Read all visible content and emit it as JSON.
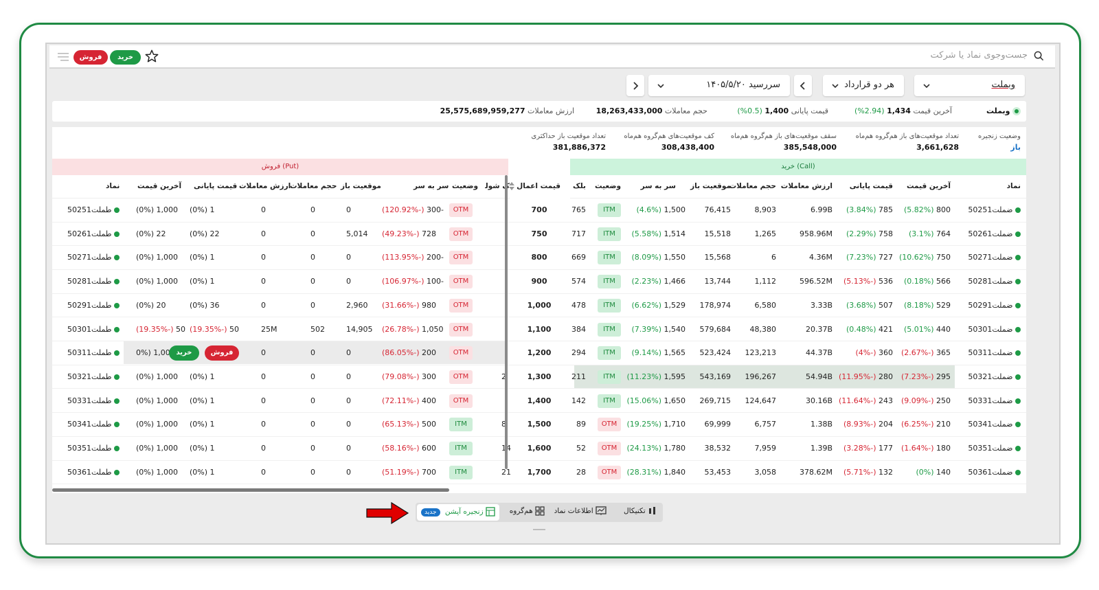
{
  "topbar": {
    "search_placeholder": "جست‌وجوی نماد یا شرکت",
    "buy_label": "خرید",
    "sell_label": "فروش"
  },
  "filters": {
    "symbol": "وبملت",
    "contract_type": "هر دو قرارداد",
    "expiry": "سررسید ۱۴۰۵/۵/۲۰"
  },
  "info1": {
    "symbol": "وبملت",
    "last_price_label": "آخرین قیمت",
    "last_price_value": "1,434",
    "last_price_change": "(2.94%)",
    "close_price_label": "قیمت پایانی",
    "close_price_value": "1,400",
    "close_price_change": "(0.5%)",
    "volume_label": "حجم معاملات",
    "volume_value": "18,263,433,000",
    "value_label": "ارزش معاملات",
    "value_value": "25,575,689,959,277"
  },
  "info2": [
    {
      "label": "وضعیت زنجیره",
      "value": "باز"
    },
    {
      "label": "تعداد موقعیت‌های باز هم‌گروه هم‌ماه",
      "value": "3,661,628"
    },
    {
      "label": "سقف موقعیت‌های باز هم‌گروه هم‌ماه",
      "value": "385,548,000"
    },
    {
      "label": "کف موقعیت‌های هم‌گروه هم‌ماه",
      "value": "308,438,400"
    },
    {
      "label": "تعداد موقعیت باز حداکثری",
      "value": "381,886,372"
    }
  ],
  "bands": {
    "call": "خرید (Call)",
    "put": "فروش (Put)"
  },
  "call_headers": {
    "symbol": "نماد",
    "last": "آخرین قیمت",
    "close": "قیمت پایانی",
    "value": "ارزش معاملات",
    "volume": "حجم معاملات",
    "oi": "موقعیت باز",
    "breakeven": "سر به سر",
    "status": "وضعیت",
    "block": "بلک"
  },
  "strike_header": "قیمت اعمال",
  "put_headers": {
    "bs": "ک شولز",
    "status": "وضعیت",
    "breakeven": "سر به سر",
    "oi": "موقعیت باز",
    "volume": "حجم معاملات",
    "value": "ارزش معاملات",
    "close": "قیمت پایانی",
    "last": "آخرین قیمت",
    "symbol": "نماد"
  },
  "rows": [
    {
      "strike": "700",
      "call": {
        "symbol": "ضملت50251",
        "last": "800",
        "last_chg": "(5.82%)",
        "close": "785",
        "close_chg": "(3.84%)",
        "value": "6.99B",
        "volume": "8,903",
        "oi": "76,415",
        "be": "1,500",
        "be_chg": "(4.6%)",
        "status": "ITM",
        "block": "765"
      },
      "put": {
        "bs": "",
        "status": "OTM",
        "be": "-300",
        "be_chg": "(-120.92%)",
        "oi": "0",
        "volume": "0",
        "value": "0",
        "close": "1",
        "close_chg": "(0%)",
        "last": "1,000",
        "last_chg": "(0%)",
        "symbol": "طملت50251"
      }
    },
    {
      "strike": "750",
      "call": {
        "symbol": "ضملت50261",
        "last": "764",
        "last_chg": "(3.1%)",
        "close": "758",
        "close_chg": "(2.29%)",
        "value": "958.96M",
        "volume": "1,265",
        "oi": "15,518",
        "be": "1,514",
        "be_chg": "(5.58%)",
        "status": "ITM",
        "block": "717"
      },
      "put": {
        "bs": "",
        "status": "OTM",
        "be": "728",
        "be_chg": "(-49.23%)",
        "oi": "5,014",
        "volume": "0",
        "value": "0",
        "close": "22",
        "close_chg": "(0%)",
        "last": "22",
        "last_chg": "(0%)",
        "symbol": "طملت50261"
      }
    },
    {
      "strike": "800",
      "call": {
        "symbol": "ضملت50271",
        "last": "750",
        "last_chg": "(10.62%)",
        "close": "727",
        "close_chg": "(7.23%)",
        "value": "4.36M",
        "volume": "6",
        "oi": "15,568",
        "be": "1,550",
        "be_chg": "(8.09%)",
        "status": "ITM",
        "block": "669"
      },
      "put": {
        "bs": "",
        "status": "OTM",
        "be": "-200",
        "be_chg": "(-113.95%)",
        "oi": "0",
        "volume": "0",
        "value": "0",
        "close": "1",
        "close_chg": "(0%)",
        "last": "1,000",
        "last_chg": "(0%)",
        "symbol": "طملت50271"
      }
    },
    {
      "strike": "900",
      "call": {
        "symbol": "ضملت50281",
        "last": "566",
        "last_chg": "(0.18%)",
        "close": "536",
        "close_chg": "(-5.13%)",
        "value": "596.52M",
        "volume": "1,112",
        "oi": "13,744",
        "be": "1,466",
        "be_chg": "(2.23%)",
        "status": "ITM",
        "block": "574"
      },
      "put": {
        "bs": "",
        "status": "OTM",
        "be": "-100",
        "be_chg": "(-106.97%)",
        "oi": "0",
        "volume": "0",
        "value": "0",
        "close": "1",
        "close_chg": "(0%)",
        "last": "1,000",
        "last_chg": "(0%)",
        "symbol": "طملت50281"
      }
    },
    {
      "strike": "1,000",
      "call": {
        "symbol": "ضملت50291",
        "last": "529",
        "last_chg": "(8.18%)",
        "close": "507",
        "close_chg": "(3.68%)",
        "value": "3.33B",
        "volume": "6,580",
        "oi": "178,974",
        "be": "1,529",
        "be_chg": "(6.62%)",
        "status": "ITM",
        "block": "478"
      },
      "put": {
        "bs": "",
        "status": "OTM",
        "be": "980",
        "be_chg": "(-31.66%)",
        "oi": "2,960",
        "volume": "0",
        "value": "0",
        "close": "36",
        "close_chg": "(0%)",
        "last": "20",
        "last_chg": "(0%)",
        "symbol": "طملت50291"
      }
    },
    {
      "strike": "1,100",
      "call": {
        "symbol": "ضملت50301",
        "last": "440",
        "last_chg": "(5.01%)",
        "close": "421",
        "close_chg": "(0.48%)",
        "value": "20.37B",
        "volume": "48,380",
        "oi": "579,684",
        "be": "1,540",
        "be_chg": "(7.39%)",
        "status": "ITM",
        "block": "384"
      },
      "put": {
        "bs": "",
        "status": "OTM",
        "be": "1,050",
        "be_chg": "(-26.78%)",
        "oi": "14,905",
        "volume": "502",
        "value": "25M",
        "close": "50",
        "close_chg": "(-19.35%)",
        "last": "50",
        "last_chg": "(-19.35%)",
        "symbol": "طملت50301"
      }
    },
    {
      "strike": "1,200",
      "call": {
        "symbol": "ضملت50311",
        "last": "365",
        "last_chg": "(-2.67%)",
        "close": "360",
        "close_chg": "(-4%)",
        "value": "44.37B",
        "volume": "123,213",
        "oi": "523,424",
        "be": "1,565",
        "be_chg": "(9.14%)",
        "status": "ITM",
        "block": "294"
      },
      "put": {
        "bs": "",
        "status": "OTM",
        "be": "200",
        "be_chg": "(-86.05%)",
        "oi": "0",
        "volume": "0",
        "value": "0",
        "close": "",
        "close_chg": "",
        "last": "1,000",
        "last_chg": "(0%",
        "symbol": "طملت50311"
      }
    },
    {
      "strike": "1,300",
      "call": {
        "symbol": "ضملت50321",
        "last": "295",
        "last_chg": "(-7.23%)",
        "close": "280",
        "close_chg": "(-11.95%)",
        "value": "54.94B",
        "volume": "196,267",
        "oi": "543,169",
        "be": "1,595",
        "be_chg": "(11.23%)",
        "status": "ITM",
        "block": "211"
      },
      "put": {
        "bs": "2",
        "status": "OTM",
        "be": "300",
        "be_chg": "(-79.08%)",
        "oi": "0",
        "volume": "0",
        "value": "0",
        "close": "1",
        "close_chg": "(0%)",
        "last": "1,000",
        "last_chg": "(0%)",
        "symbol": "طملت50321"
      }
    },
    {
      "strike": "1,400",
      "call": {
        "symbol": "ضملت50331",
        "last": "250",
        "last_chg": "(-9.09%)",
        "close": "243",
        "close_chg": "(-11.64%)",
        "value": "30.16B",
        "volume": "124,647",
        "oi": "269,715",
        "be": "1,650",
        "be_chg": "(15.06%)",
        "status": "ITM",
        "block": "142"
      },
      "put": {
        "bs": "",
        "status": "OTM",
        "be": "400",
        "be_chg": "(-72.11%)",
        "oi": "0",
        "volume": "0",
        "value": "0",
        "close": "1",
        "close_chg": "(0%)",
        "last": "1,000",
        "last_chg": "(0%)",
        "symbol": "طملت50331"
      }
    },
    {
      "strike": "1,500",
      "call": {
        "symbol": "ضملت50341",
        "last": "210",
        "last_chg": "(-6.25%)",
        "close": "204",
        "close_chg": "(-8.93%)",
        "value": "1.38B",
        "volume": "6,757",
        "oi": "69,999",
        "be": "1,710",
        "be_chg": "(19.25%)",
        "status": "OTM",
        "block": "89"
      },
      "put": {
        "bs": "8",
        "status": "ITM",
        "be": "500",
        "be_chg": "(-65.13%)",
        "oi": "0",
        "volume": "0",
        "value": "0",
        "close": "1",
        "close_chg": "(0%)",
        "last": "1,000",
        "last_chg": "(0%)",
        "symbol": "طملت50341"
      }
    },
    {
      "strike": "1,600",
      "call": {
        "symbol": "ضملت50351",
        "last": "180",
        "last_chg": "(-1.64%)",
        "close": "177",
        "close_chg": "(-3.28%)",
        "value": "1.39B",
        "volume": "7,959",
        "oi": "38,532",
        "be": "1,780",
        "be_chg": "(24.13%)",
        "status": "OTM",
        "block": "52"
      },
      "put": {
        "bs": "14",
        "status": "ITM",
        "be": "600",
        "be_chg": "(-58.16%)",
        "oi": "0",
        "volume": "0",
        "value": "0",
        "close": "1",
        "close_chg": "(0%)",
        "last": "1,000",
        "last_chg": "(0%)",
        "symbol": "طملت50351"
      }
    },
    {
      "strike": "1,700",
      "call": {
        "symbol": "ضملت50361",
        "last": "140",
        "last_chg": "(0%)",
        "close": "132",
        "close_chg": "(-5.71%)",
        "value": "378.62M",
        "volume": "3,058",
        "oi": "53,453",
        "be": "1,840",
        "be_chg": "(28.31%)",
        "status": "OTM",
        "block": "28"
      },
      "put": {
        "bs": "21",
        "status": "ITM",
        "be": "700",
        "be_chg": "(-51.19%)",
        "oi": "0",
        "volume": "0",
        "value": "0",
        "close": "1",
        "close_chg": "(0%)",
        "last": "1,000",
        "last_chg": "(0%)",
        "symbol": "طملت50361"
      }
    }
  ],
  "row_actions": {
    "buy": "خرید",
    "sell": "فروش"
  },
  "bottom_tabs": {
    "technical": "تکنیکال",
    "info": "اطلاعات نماد",
    "group": "هم‌گروه",
    "chain": "زنجیره آپشن",
    "new": "جدید"
  },
  "colors": {
    "green": "#1e9a46",
    "red": "#d62533",
    "call_band": "#ccf3dc",
    "put_band": "#fbe0e2",
    "arrow": "#e00000"
  }
}
